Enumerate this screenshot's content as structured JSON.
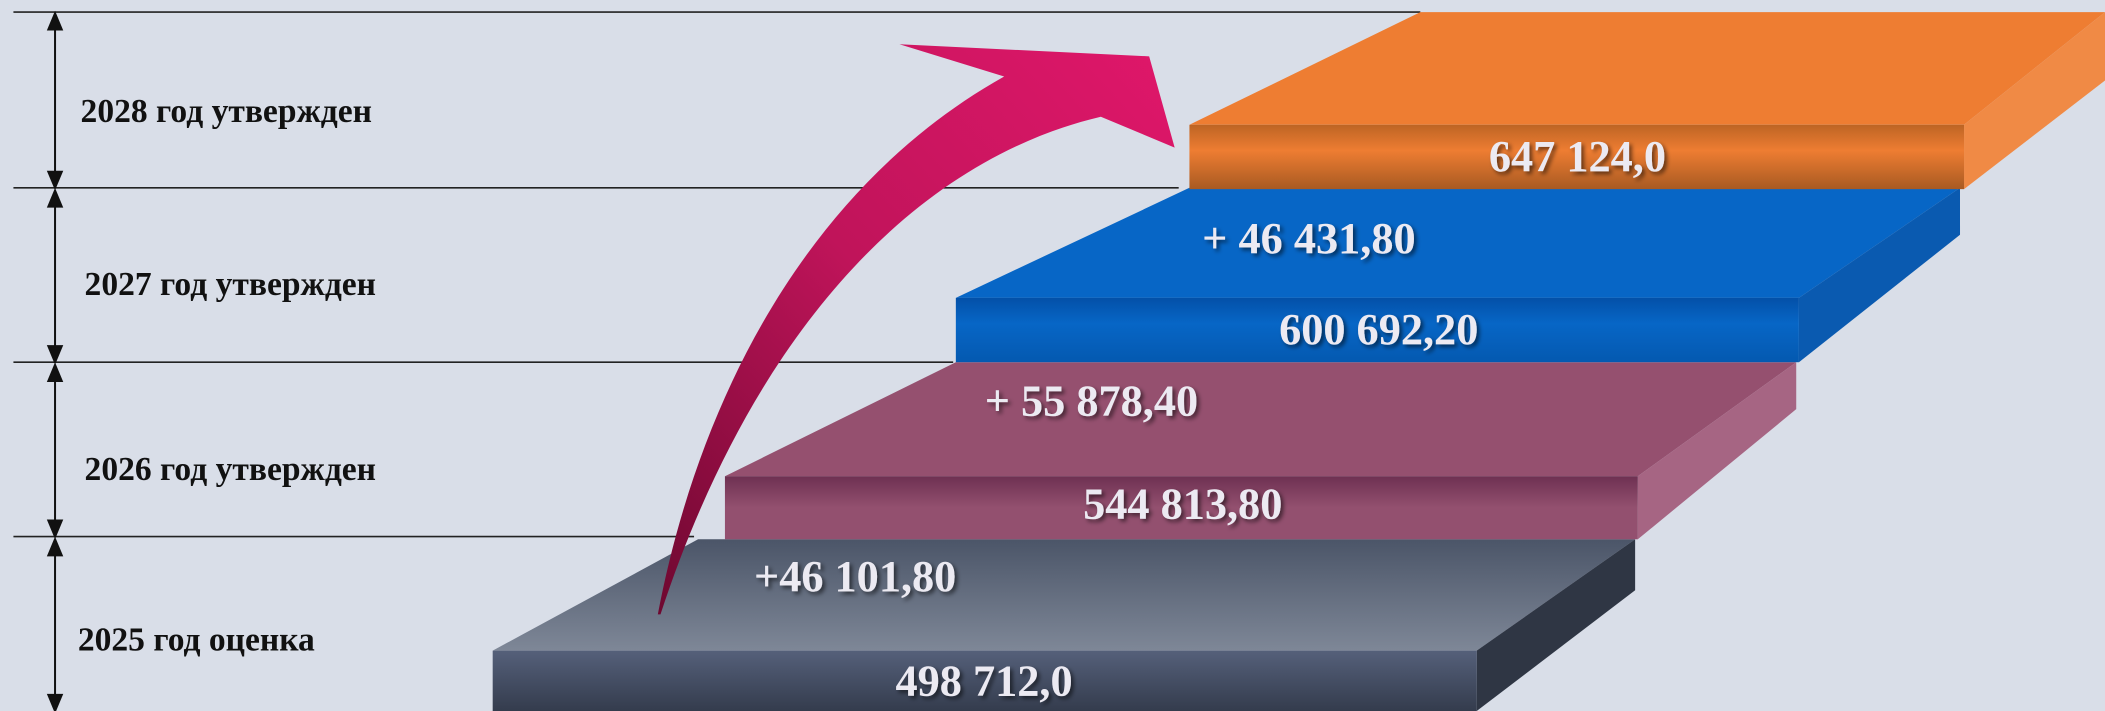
{
  "levels": [
    {
      "label": "2025 год оценка",
      "value": "498 712,0",
      "change": "+46 101,80"
    },
    {
      "label": "2026 год утвержден",
      "value": "544 813,80",
      "change": "+ 55 878,40"
    },
    {
      "label": "2027 год утвержден",
      "value": "600 692,20",
      "change": "+ 46 431,80"
    },
    {
      "label": "2028 год утвержден",
      "value": "647 124,0"
    }
  ]
}
